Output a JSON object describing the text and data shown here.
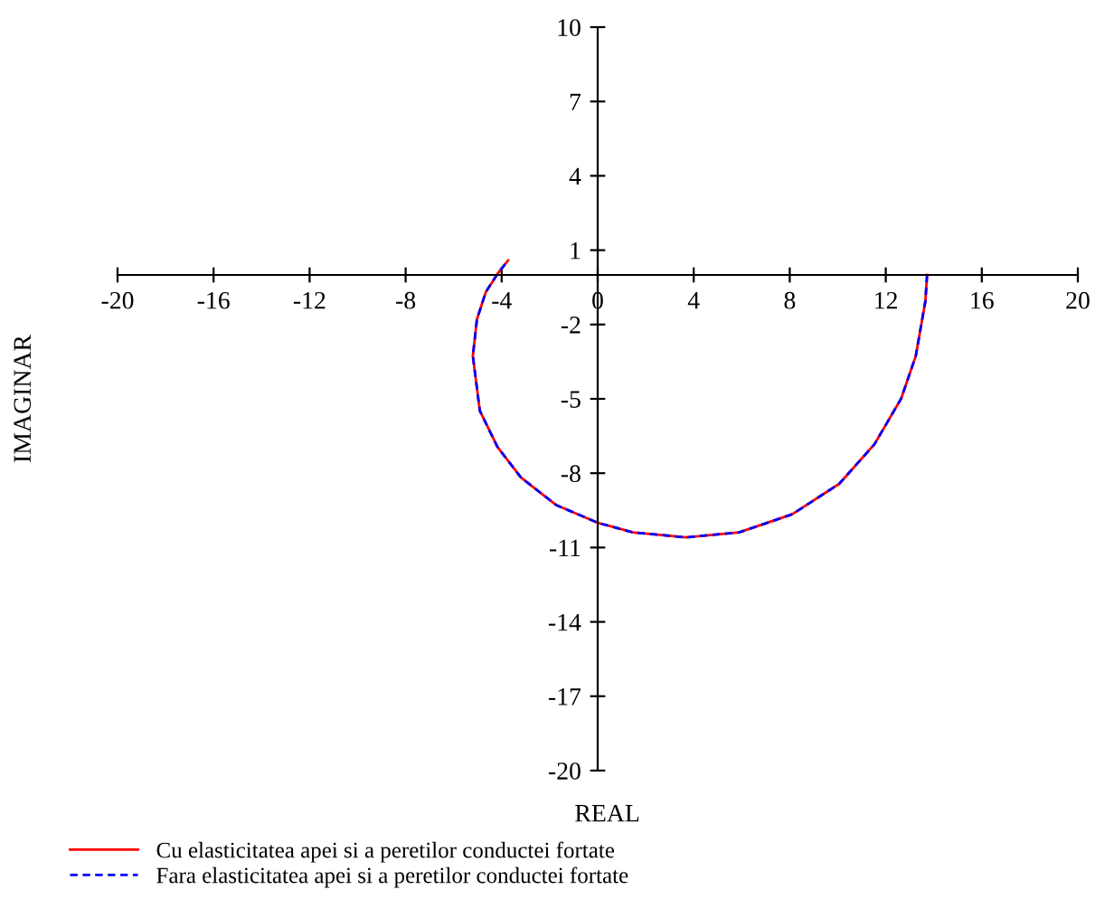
{
  "chart_data": {
    "type": "line",
    "xlabel": "REAL",
    "ylabel": "IMAGINAR",
    "x": [
      13.72,
      13.65,
      13.25,
      12.64,
      11.53,
      10.06,
      8.1,
      5.89,
      3.68,
      1.47,
      0,
      -1.72,
      -3.19,
      -4.17,
      -4.91,
      -5.2,
      -5.03,
      -4.66,
      -4.17,
      -3.73
    ],
    "series": [
      {
        "name": "Cu elasticitatea apei si a peretilor conductei fortate",
        "color": "#ff0000",
        "line_style": "solid",
        "values": [
          0,
          -1.06,
          -3.27,
          -4.99,
          -6.83,
          -8.43,
          -9.66,
          -10.39,
          -10.59,
          -10.39,
          -10.0,
          -9.29,
          -8.18,
          -6.95,
          -5.48,
          -3.27,
          -1.79,
          -0.69,
          0.05,
          0.59
        ]
      },
      {
        "name": "Fara elasticitatea apei si a peretilor conductei fortate",
        "color": "#0000ff",
        "line_style": "dashed",
        "values": [
          0,
          -1.06,
          -3.27,
          -4.99,
          -6.83,
          -8.43,
          -9.66,
          -10.39,
          -10.59,
          -10.39,
          -10.0,
          -9.29,
          -8.18,
          -6.95,
          -5.48,
          -3.27,
          -1.79,
          -0.69,
          0.05,
          0.59
        ]
      }
    ],
    "xlim": [
      -20,
      20
    ],
    "ylim": [
      -20,
      10
    ],
    "xticks": [
      -20,
      -16,
      -12,
      -8,
      -4,
      0,
      4,
      8,
      12,
      16,
      20
    ],
    "yticks": [
      10,
      7,
      4,
      1,
      -2,
      -5,
      -8,
      -11,
      -14,
      -17,
      -20
    ],
    "grid": false,
    "legend": "bottom left",
    "marker": "none"
  }
}
